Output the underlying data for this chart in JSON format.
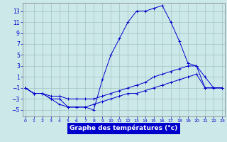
{
  "x": [
    0,
    1,
    2,
    3,
    4,
    5,
    6,
    7,
    8,
    9,
    10,
    11,
    12,
    13,
    14,
    15,
    16,
    17,
    18,
    19,
    20,
    21,
    22,
    23
  ],
  "line1": [
    -1,
    -2,
    -2,
    -3,
    -3,
    -4.5,
    -4.5,
    -4.5,
    -5,
    0.5,
    5,
    8,
    11,
    13,
    13,
    13.5,
    14,
    11,
    7.5,
    3.5,
    3,
    1,
    -1,
    -1
  ],
  "line2": [
    -1,
    -2,
    -2,
    -2.5,
    -2.5,
    -3,
    -3,
    -3,
    -3,
    -2.5,
    -2,
    -1.5,
    -1,
    -0.5,
    0,
    1,
    1.5,
    2,
    2.5,
    3,
    3,
    -1,
    -1,
    -1
  ],
  "line3": [
    -1,
    -2,
    -2,
    -3,
    -4,
    -4.5,
    -4.5,
    -4.5,
    -4,
    -3.5,
    -3,
    -2.5,
    -2,
    -2,
    -1.5,
    -1,
    -0.5,
    0,
    0.5,
    1,
    1.5,
    -1,
    -1,
    -1
  ],
  "bg_color": "#cce8e8",
  "grid_color": "#a0c4c4",
  "line_color": "#0000cc",
  "xlabel": "Graphe des températures (°c)",
  "xlabel_bg": "#0000cc",
  "xlabel_fg": "#ffffff",
  "yticks": [
    -5,
    -3,
    -1,
    1,
    3,
    5,
    7,
    9,
    11,
    13
  ],
  "xticks": [
    0,
    1,
    2,
    3,
    4,
    5,
    6,
    7,
    8,
    9,
    10,
    11,
    12,
    13,
    14,
    15,
    16,
    17,
    18,
    19,
    20,
    21,
    22,
    23
  ],
  "ylim": [
    -6.2,
    14.5
  ],
  "xlim": [
    -0.3,
    23.3
  ]
}
